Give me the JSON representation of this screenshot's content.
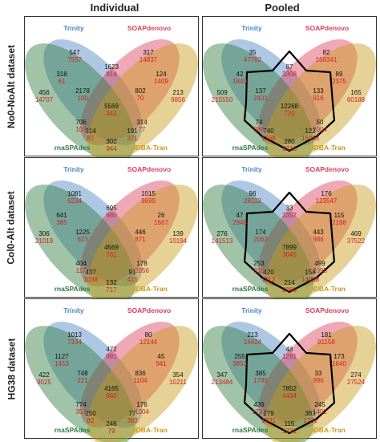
{
  "columns": [
    "Individual",
    "Pooled"
  ],
  "rows": [
    "No0-NoAlt dataset",
    "Col0-Alt dataset",
    "HG38 dataset"
  ],
  "sets": [
    "Trinity",
    "SOAPdenovo",
    "rnaSPAdes",
    "IDBA-Tran"
  ],
  "colors": {
    "trinity": "#4b86c4",
    "soapdenovo": "#d93f5d",
    "rnaspades": "#2e7a3c",
    "idba": "#c79b16",
    "count": "#111111",
    "length": "#d42020"
  },
  "regionOrder": [
    "T",
    "S",
    "R",
    "I",
    "TS",
    "TR",
    "SI",
    "RI",
    "TI",
    "SR",
    "TSR",
    "TSI",
    "TRI",
    "SRI",
    "ALL"
  ],
  "panels": [
    {
      "row": 0,
      "col": 0,
      "regions": {
        "T": [
          "547",
          "7557"
        ],
        "S": [
          "317",
          "14837"
        ],
        "R": [
          "456",
          "14707"
        ],
        "I": [
          "213",
          "9856"
        ],
        "TS": [
          "1623",
          "814"
        ],
        "TR": [
          "318",
          "61"
        ],
        "SI": [
          "124",
          "1409"
        ],
        "RI": [
          "302",
          "944"
        ],
        "TI": [
          "314",
          "77"
        ],
        "SR": [
          "706",
          "103"
        ],
        "TSR": [
          "2178",
          "100"
        ],
        "TSI": [
          "802",
          "70"
        ],
        "TRI": [
          "314",
          "87"
        ],
        "SRI": [
          "191",
          "371"
        ],
        "ALL": [
          "5569",
          "342"
        ]
      },
      "outline": false
    },
    {
      "row": 0,
      "col": 1,
      "regions": {
        "T": [
          "35",
          "47762"
        ],
        "S": [
          "82",
          "168341"
        ],
        "R": [
          "509",
          "215550"
        ],
        "I": [
          "165",
          "60188"
        ],
        "TS": [
          "87",
          "3308"
        ],
        "TR": [
          "42",
          "1840"
        ],
        "SI": [
          "89",
          "2375"
        ],
        "RI": [
          "280",
          "3216"
        ],
        "TI": [
          "50",
          "2004"
        ],
        "SR": [
          "74",
          "886"
        ],
        "TSR": [
          "137",
          "2431"
        ],
        "TSI": [
          "133",
          "916"
        ],
        "TRI": [
          "740",
          "1168"
        ],
        "SRI": [
          "122",
          "15063"
        ],
        "ALL": [
          "12268",
          "720"
        ]
      },
      "outline": true
    },
    {
      "row": 1,
      "col": 0,
      "regions": {
        "T": [
          "1081",
          "6234"
        ],
        "S": [
          "1015",
          "9699"
        ],
        "R": [
          "306",
          "21019"
        ],
        "I": [
          "139",
          "10194"
        ],
        "TS": [
          "695",
          "980"
        ],
        "TR": [
          "641",
          "385"
        ],
        "SI": [
          "26",
          "1667"
        ],
        "RI": [
          "132",
          "717"
        ],
        "TI": [
          "178",
          "2056"
        ],
        "SR": [
          "404",
          "117"
        ],
        "TSR": [
          "1225",
          "623"
        ],
        "TSI": [
          "446",
          "871"
        ],
        "TRI": [
          "437",
          "1038"
        ],
        "SRI": [
          "91",
          "416"
        ],
        "ALL": [
          "4569",
          "761"
        ]
      },
      "outline": false
    },
    {
      "row": 1,
      "col": 1,
      "regions": {
        "T": [
          "96",
          "28112"
        ],
        "S": [
          "176",
          "123547"
        ],
        "R": [
          "276",
          "141513"
        ],
        "I": [
          "469",
          "37522"
        ],
        "TS": [
          "33",
          "3357"
        ],
        "TR": [
          "47",
          "2948"
        ],
        "SI": [
          "115",
          "2198"
        ],
        "RI": [
          "214",
          "2080"
        ],
        "TI": [
          "499",
          "2095"
        ],
        "SR": [
          "253",
          "916"
        ],
        "TSR": [
          "174",
          "2062"
        ],
        "TSI": [
          "443",
          "986"
        ],
        "TRI": [
          "420",
          "1112"
        ],
        "SRI": [
          "158",
          "14088"
        ],
        "ALL": [
          "7899",
          "3045"
        ]
      },
      "outline": true
    },
    {
      "row": 2,
      "col": 0,
      "regions": {
        "T": [
          "1013",
          "7334"
        ],
        "S": [
          "80",
          "12144"
        ],
        "R": [
          "422",
          "9025"
        ],
        "I": [
          "354",
          "10211"
        ],
        "TS": [
          "472",
          "891"
        ],
        "TR": [
          "1127",
          "1453"
        ],
        "SI": [
          "45",
          "941"
        ],
        "RI": [
          "246",
          "79"
        ],
        "TI": [
          "176",
          "1004"
        ],
        "SR": [
          "774",
          "353"
        ],
        "TSR": [
          "748",
          "221"
        ],
        "TSI": [
          "836",
          "1104"
        ],
        "TRI": [
          "250",
          "82"
        ],
        "SRI": [
          "77",
          "363"
        ],
        "ALL": [
          "4165",
          "960"
        ]
      },
      "outline": false
    },
    {
      "row": 2,
      "col": 1,
      "regions": {
        "T": [
          "213",
          "16424"
        ],
        "S": [
          "181",
          "91158"
        ],
        "R": [
          "347",
          "213484"
        ],
        "I": [
          "274",
          "27524"
        ],
        "TS": [
          "48",
          "1291"
        ],
        "TR": [
          "255",
          "3953"
        ],
        "SI": [
          "173",
          "1640"
        ],
        "RI": [
          "115",
          "1731"
        ],
        "TI": [
          "245",
          "1402"
        ],
        "SR": [
          "439",
          "1731"
        ],
        "TSR": [
          "385",
          "1785"
        ],
        "TSI": [
          "33",
          "996"
        ],
        "TRI": [
          "279",
          "1731"
        ],
        "SRI": [
          "383",
          "1731"
        ],
        "ALL": [
          "7852",
          "4434"
        ]
      },
      "outline": true
    }
  ]
}
